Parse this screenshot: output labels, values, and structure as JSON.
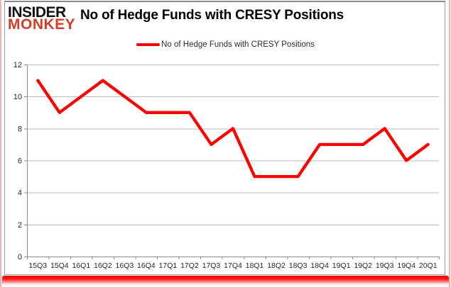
{
  "brand": {
    "line1": "INSIDER",
    "line2": "MONKEY",
    "line1_color": "#111111",
    "line2_color": "#d83b26"
  },
  "title": "No of Hedge Funds with CRESY Positions",
  "legend": {
    "label": "No of Hedge Funds with CRESY Positions",
    "swatch_color": "#ff0000"
  },
  "chart_data": {
    "type": "line",
    "categories": [
      "15Q3",
      "15Q4",
      "16Q1",
      "16Q2",
      "16Q3",
      "16Q4",
      "17Q1",
      "17Q2",
      "17Q3",
      "17Q4",
      "18Q1",
      "18Q2",
      "18Q3",
      "18Q4",
      "19Q1",
      "19Q2",
      "19Q3",
      "19Q4",
      "20Q1"
    ],
    "series": [
      {
        "name": "No of Hedge Funds with CRESY Positions",
        "color": "#ff0000",
        "values": [
          11,
          9,
          10,
          11,
          10,
          9,
          9,
          9,
          7,
          8,
          5,
          5,
          5,
          7,
          7,
          7,
          8,
          6,
          7
        ]
      }
    ],
    "title": "No of Hedge Funds with CRESY Positions",
    "xlabel": "",
    "ylabel": "",
    "ylim": [
      0,
      12
    ],
    "ytick_step": 2,
    "grid": true,
    "legend_position": "top-center"
  },
  "colors": {
    "grid": "#bdbdbd",
    "axis": "#8c8c8c",
    "tick_label": "#262626",
    "panel_border": "#9e9e9e",
    "frame_glow": "#f2b3aa",
    "accent_bar": "#ff1414"
  }
}
